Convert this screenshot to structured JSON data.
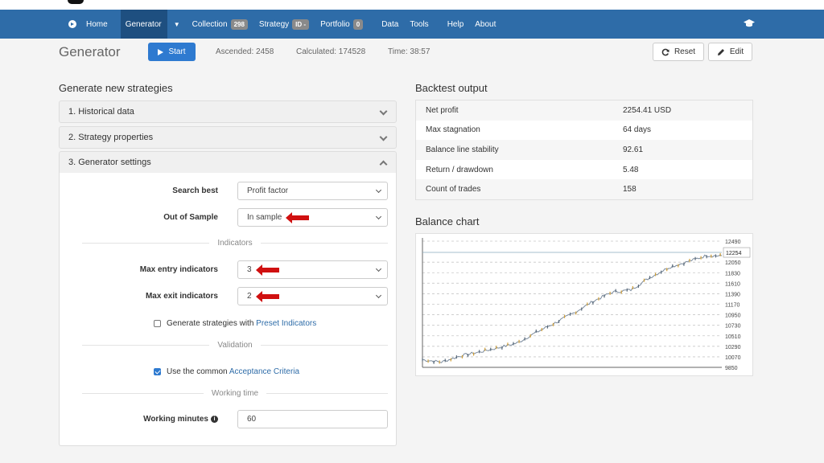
{
  "nav": {
    "items": [
      {
        "label": "Home"
      },
      {
        "label": "Generator"
      },
      {
        "label": "Collection",
        "badge": "298"
      },
      {
        "label": "Strategy",
        "badge": "ID -"
      },
      {
        "label": "Portfolio",
        "badge": "0"
      },
      {
        "label": "Data"
      },
      {
        "label": "Tools"
      },
      {
        "label": "Help"
      },
      {
        "label": "About"
      }
    ]
  },
  "toolbar": {
    "title": "Generator",
    "start_label": "Start",
    "ascended": "Ascended: 2458",
    "calculated": "Calculated: 174528",
    "time": "Time: 38:57",
    "reset_label": "Reset",
    "edit_label": "Edit"
  },
  "generate": {
    "title": "Generate new strategies",
    "sections": [
      {
        "label": "1. Historical data"
      },
      {
        "label": "2. Strategy properties"
      },
      {
        "label": "3. Generator settings"
      }
    ],
    "search_best": {
      "label": "Search best",
      "value": "Profit factor"
    },
    "out_of_sample": {
      "label": "Out of Sample",
      "value": "In sample"
    },
    "indicators_divider": "Indicators",
    "max_entry": {
      "label": "Max entry indicators",
      "value": "3"
    },
    "max_exit": {
      "label": "Max exit indicators",
      "value": "2"
    },
    "preset": {
      "text": "Generate strategies with ",
      "link": "Preset Indicators",
      "checked": false
    },
    "validation_divider": "Validation",
    "acceptance": {
      "text": "Use the common ",
      "link": "Acceptance Criteria",
      "checked": true
    },
    "working_divider": "Working time",
    "working_minutes": {
      "label": "Working minutes",
      "value": "60"
    }
  },
  "backtest": {
    "title": "Backtest output",
    "rows": [
      {
        "label": "Net profit",
        "value": "2254.41 USD"
      },
      {
        "label": "Max stagnation",
        "value": "64 days"
      },
      {
        "label": "Balance line stability",
        "value": "92.61"
      },
      {
        "label": "Return / drawdown",
        "value": "5.48"
      },
      {
        "label": "Count of trades",
        "value": "158"
      }
    ]
  },
  "colors": {
    "navbar": "#2e6ca8",
    "accent": "#2e7ad0",
    "arrow": "#d01010"
  },
  "chart_data": {
    "type": "line",
    "title": "Balance chart",
    "y_ticks": [
      12490,
      12050,
      11830,
      11610,
      11390,
      11170,
      10950,
      10730,
      10510,
      10290,
      10070,
      9850
    ],
    "current_label": "12254",
    "ylim": [
      9850,
      12490
    ],
    "grid": true,
    "x": [
      0,
      10,
      20,
      30,
      40,
      50,
      60,
      70,
      80,
      90,
      100,
      110,
      120,
      130,
      140,
      150,
      158
    ],
    "values": [
      10010,
      9960,
      10090,
      10170,
      10260,
      10360,
      10580,
      10780,
      10990,
      11230,
      11420,
      11470,
      11730,
      11940,
      12060,
      12190,
      12180
    ],
    "current_value": 12254
  }
}
